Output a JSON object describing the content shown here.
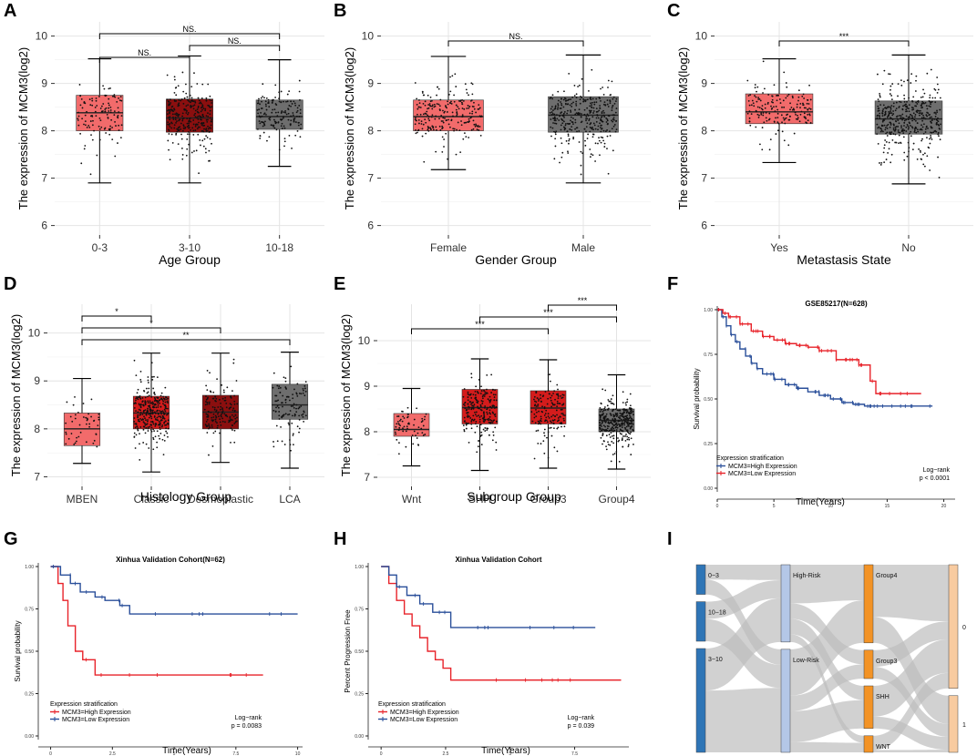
{
  "figure": {
    "panel_labels": [
      "A",
      "B",
      "C",
      "D",
      "E",
      "F",
      "G",
      "H",
      "I"
    ]
  },
  "colors": {
    "salmon": "#f26b6b",
    "darkred": "#8b0f0f",
    "gray": "#6e6e6e",
    "red": "#d41c1c",
    "grid": "#e4e4e4",
    "blue_line": "#2a4f9a",
    "red_line": "#e8232a",
    "sankey_blue": "#2e75b6",
    "sankey_light": "#b4c7e7",
    "sankey_orange": "#f39325",
    "sankey_peach": "#f8cba0",
    "sankey_flow": "#bdbdbd"
  },
  "chart_data": [
    {
      "panel": "A",
      "type": "box",
      "xlabel": "Age Group",
      "ylabel": "The expression of MCM3(log2)",
      "ylim": [
        5.8,
        10.3
      ],
      "yticks": [
        "6",
        "7",
        "8",
        "9",
        "10"
      ],
      "ytick_values": [
        6,
        7,
        8,
        9,
        10
      ],
      "categories": [
        "0-3",
        "3-10",
        "10-18"
      ],
      "boxes": [
        {
          "q1": 8.0,
          "median": 8.38,
          "q3": 8.75,
          "wlo": 6.9,
          "whi": 9.52,
          "color": "salmon",
          "n": 120
        },
        {
          "q1": 7.97,
          "median": 8.27,
          "q3": 8.67,
          "wlo": 6.9,
          "whi": 9.58,
          "color": "darkred",
          "n": 300
        },
        {
          "q1": 8.03,
          "median": 8.3,
          "q3": 8.65,
          "wlo": 7.25,
          "whi": 9.5,
          "color": "gray",
          "n": 160
        }
      ],
      "significance": [
        {
          "from": 0,
          "to": 1,
          "label": "NS."
        },
        {
          "from": 1,
          "to": 2,
          "label": "NS."
        },
        {
          "from": 0,
          "to": 2,
          "label": "NS."
        }
      ]
    },
    {
      "panel": "B",
      "type": "box",
      "xlabel": "Gender Group",
      "ylabel": "The expression of MCM3(log2)",
      "ylim": [
        5.8,
        10.3
      ],
      "yticks": [
        "6",
        "7",
        "8",
        "9",
        "10"
      ],
      "ytick_values": [
        6,
        7,
        8,
        9,
        10
      ],
      "categories": [
        "Female",
        "Male"
      ],
      "boxes": [
        {
          "q1": 8.0,
          "median": 8.3,
          "q3": 8.65,
          "wlo": 7.18,
          "whi": 9.57,
          "color": "salmon",
          "n": 230
        },
        {
          "q1": 7.97,
          "median": 8.33,
          "q3": 8.72,
          "wlo": 6.9,
          "whi": 9.6,
          "color": "gray",
          "n": 360
        }
      ],
      "significance": [
        {
          "from": 0,
          "to": 1,
          "label": "NS."
        }
      ]
    },
    {
      "panel": "C",
      "type": "box",
      "xlabel": "Metastasis State",
      "ylabel": "The expression of MCM3(log2)",
      "ylim": [
        5.8,
        10.3
      ],
      "yticks": [
        "6",
        "7",
        "8",
        "9",
        "10"
      ],
      "ytick_values": [
        6,
        7,
        8,
        9,
        10
      ],
      "categories": [
        "Yes",
        "No"
      ],
      "boxes": [
        {
          "q1": 8.15,
          "median": 8.4,
          "q3": 8.78,
          "wlo": 7.33,
          "whi": 9.52,
          "color": "salmon",
          "n": 170
        },
        {
          "q1": 7.93,
          "median": 8.25,
          "q3": 8.63,
          "wlo": 6.88,
          "whi": 9.6,
          "color": "gray",
          "n": 420
        }
      ],
      "significance": [
        {
          "from": 0,
          "to": 1,
          "label": "***"
        }
      ]
    },
    {
      "panel": "D",
      "type": "box",
      "xlabel": "Histology Group",
      "ylabel": "The expression of MCM3(log2)",
      "ylim": [
        6.8,
        10.6
      ],
      "yticks": [
        "7",
        "8",
        "9",
        "10"
      ],
      "ytick_values": [
        7,
        8,
        9,
        10
      ],
      "categories": [
        "MBEN",
        "Classic",
        "Desmoplastic",
        "LCA"
      ],
      "boxes": [
        {
          "q1": 7.65,
          "median": 8.0,
          "q3": 8.33,
          "wlo": 7.28,
          "whi": 9.05,
          "color": "salmon",
          "n": 45
        },
        {
          "q1": 8.0,
          "median": 8.33,
          "q3": 8.68,
          "wlo": 7.1,
          "whi": 9.58,
          "color": "red",
          "n": 330
        },
        {
          "q1": 8.0,
          "median": 8.35,
          "q3": 8.7,
          "wlo": 7.3,
          "whi": 9.58,
          "color": "darkred",
          "n": 160
        },
        {
          "q1": 8.2,
          "median": 8.5,
          "q3": 8.93,
          "wlo": 7.18,
          "whi": 9.6,
          "color": "gray",
          "n": 110
        }
      ],
      "significance": [
        {
          "from": 0,
          "to": 1,
          "label": "*"
        },
        {
          "from": 0,
          "to": 2,
          "label": "*"
        },
        {
          "from": 0,
          "to": 3,
          "label": "**"
        }
      ]
    },
    {
      "panel": "E",
      "type": "box",
      "xlabel": "Subgroup Group",
      "ylabel": "The expression of MCM3(log2)",
      "ylim": [
        6.8,
        10.8
      ],
      "yticks": [
        "7",
        "8",
        "9",
        "10"
      ],
      "ytick_values": [
        7,
        8,
        9,
        10
      ],
      "categories": [
        "Wnt",
        "SHH",
        "Group3",
        "Group4"
      ],
      "boxes": [
        {
          "q1": 7.9,
          "median": 8.05,
          "q3": 8.4,
          "wlo": 7.25,
          "whi": 8.95,
          "color": "salmon",
          "n": 60
        },
        {
          "q1": 8.17,
          "median": 8.53,
          "q3": 8.93,
          "wlo": 7.15,
          "whi": 9.6,
          "color": "red",
          "n": 220
        },
        {
          "q1": 8.17,
          "median": 8.52,
          "q3": 8.9,
          "wlo": 7.2,
          "whi": 9.58,
          "color": "red",
          "n": 150
        },
        {
          "q1": 8.0,
          "median": 8.25,
          "q3": 8.5,
          "wlo": 7.18,
          "whi": 9.25,
          "color": "gray",
          "n": 330
        }
      ],
      "significance": [
        {
          "from": 0,
          "to": 2,
          "label": "***"
        },
        {
          "from": 1,
          "to": 3,
          "label": "***"
        },
        {
          "from": 2,
          "to": 3,
          "label": "***"
        }
      ]
    },
    {
      "panel": "F",
      "type": "line",
      "subtype": "kaplan-meier",
      "title": "GSE85217(N=628)",
      "xlabel": "Time(Years)",
      "ylabel": "Survival probability",
      "xlim": [
        0,
        21
      ],
      "ylim": [
        0,
        1.0
      ],
      "xticks": [
        "0",
        "5",
        "10",
        "15",
        "20"
      ],
      "xtick_values": [
        0,
        5,
        10,
        15,
        20
      ],
      "yticks": [
        "0.00",
        "0.25",
        "0.50",
        "0.75",
        "1.00"
      ],
      "ytick_values": [
        0,
        0.25,
        0.5,
        0.75,
        1.0
      ],
      "legend_title": "Expression stratification",
      "stat_lines": [
        "Log−rank",
        "p < 0.0001"
      ],
      "series": [
        {
          "name": "MCM3=High Expression",
          "color": "blue_line",
          "x": [
            0,
            0.4,
            0.8,
            1.2,
            1.6,
            2.0,
            2.5,
            3.0,
            3.5,
            4.0,
            5.0,
            6.0,
            7.0,
            8.0,
            9.0,
            10.0,
            11.0,
            12.0,
            13.0,
            15.0,
            19.0
          ],
          "y": [
            1.0,
            0.96,
            0.91,
            0.86,
            0.82,
            0.78,
            0.74,
            0.7,
            0.67,
            0.64,
            0.61,
            0.58,
            0.56,
            0.54,
            0.52,
            0.5,
            0.48,
            0.47,
            0.46,
            0.46,
            0.46
          ]
        },
        {
          "name": "MCM3=Low Expression",
          "color": "red_line",
          "x": [
            0,
            0.5,
            1.0,
            2.0,
            3.0,
            4.0,
            5.0,
            6.0,
            7.0,
            8.0,
            9.0,
            10.5,
            12.5,
            13.5,
            14.0,
            18.0
          ],
          "y": [
            1.0,
            0.98,
            0.96,
            0.92,
            0.88,
            0.85,
            0.83,
            0.81,
            0.8,
            0.79,
            0.77,
            0.72,
            0.69,
            0.6,
            0.53,
            0.53
          ]
        }
      ]
    },
    {
      "panel": "G",
      "type": "line",
      "subtype": "kaplan-meier",
      "title": "Xinhua Validation Cohort(N=62)",
      "xlabel": "Time(Years)",
      "ylabel": "Survival probability",
      "xlim": [
        -0.5,
        10.2
      ],
      "ylim": [
        0,
        1.0
      ],
      "xticks": [
        "0",
        "2.5",
        "5",
        "7.5",
        "10"
      ],
      "xtick_values": [
        0,
        2.5,
        5,
        7.5,
        10
      ],
      "yticks": [
        "0.00",
        "0.25",
        "0.50",
        "0.75",
        "1.00"
      ],
      "ytick_values": [
        0,
        0.25,
        0.5,
        0.75,
        1.0
      ],
      "legend_title": "Expression stratification",
      "stat_lines": [
        "Log−rank",
        "p = 0.0083"
      ],
      "series": [
        {
          "name": "MCM3=High Expression",
          "color": "red_line",
          "x": [
            0,
            0.3,
            0.5,
            0.7,
            1.0,
            1.3,
            1.8,
            8.6
          ],
          "y": [
            1.0,
            0.9,
            0.8,
            0.65,
            0.5,
            0.45,
            0.36,
            0.36
          ]
        },
        {
          "name": "MCM3=Low Expression",
          "color": "blue_line",
          "x": [
            0,
            0.4,
            0.8,
            1.2,
            1.8,
            2.2,
            2.8,
            3.2,
            10.0
          ],
          "y": [
            1.0,
            0.95,
            0.9,
            0.85,
            0.82,
            0.8,
            0.77,
            0.72,
            0.72
          ]
        }
      ]
    },
    {
      "panel": "H",
      "type": "line",
      "subtype": "kaplan-meier",
      "title": "Xinhua Validation Cohort",
      "xlabel": "Time(Years)",
      "ylabel": "Percent Progression Free",
      "xlim": [
        -0.5,
        9.6
      ],
      "ylim": [
        0,
        1.0
      ],
      "xticks": [
        "0",
        "2.5",
        "5",
        "7.5"
      ],
      "xtick_values": [
        0,
        2.5,
        5,
        7.5
      ],
      "yticks": [
        "0.00",
        "0.25",
        "0.50",
        "0.75",
        "1.00"
      ],
      "ytick_values": [
        0,
        0.25,
        0.5,
        0.75,
        1.0
      ],
      "legend_title": "Expression stratification",
      "stat_lines": [
        "Log−rank",
        "p = 0.039"
      ],
      "series": [
        {
          "name": "MCM3=High Expression",
          "color": "red_line",
          "x": [
            0,
            0.3,
            0.6,
            0.9,
            1.2,
            1.5,
            1.8,
            2.1,
            2.4,
            2.7,
            9.3
          ],
          "y": [
            1.0,
            0.9,
            0.8,
            0.72,
            0.65,
            0.58,
            0.5,
            0.45,
            0.4,
            0.33,
            0.33
          ]
        },
        {
          "name": "MCM3=Low Expression",
          "color": "blue_line",
          "x": [
            0,
            0.3,
            0.6,
            1.0,
            1.5,
            2.0,
            2.7,
            8.3
          ],
          "y": [
            1.0,
            0.95,
            0.88,
            0.83,
            0.78,
            0.73,
            0.64,
            0.64
          ]
        }
      ]
    },
    {
      "panel": "I",
      "type": "sankey",
      "stages": [
        {
          "nodes": [
            {
              "label": "0−3",
              "value": 12
            },
            {
              "label": "10−18",
              "value": 16
            },
            {
              "label": "3−10",
              "value": 42
            }
          ],
          "color": "sankey_blue"
        },
        {
          "nodes": [
            {
              "label": "High-Risk",
              "value": 30
            },
            {
              "label": "Low-Risk",
              "value": 40
            }
          ],
          "color": "sankey_light"
        },
        {
          "nodes": [
            {
              "label": "Group4",
              "value": 33
            },
            {
              "label": "Group3",
              "value": 12
            },
            {
              "label": "SHH",
              "value": 18
            },
            {
              "label": "WNT",
              "value": 7
            }
          ],
          "color": "sankey_orange"
        },
        {
          "nodes": [
            {
              "label": "0",
              "value": 48
            },
            {
              "label": "1",
              "value": 22
            }
          ],
          "color": "sankey_peach"
        }
      ],
      "links": [
        [
          [
            0,
            0,
            6
          ],
          [
            0,
            1,
            6
          ],
          [
            1,
            0,
            7
          ],
          [
            1,
            1,
            9
          ],
          [
            2,
            0,
            17
          ],
          [
            2,
            1,
            25
          ]
        ],
        [
          [
            0,
            0,
            15
          ],
          [
            0,
            1,
            6
          ],
          [
            0,
            2,
            6
          ],
          [
            0,
            3,
            3
          ],
          [
            1,
            0,
            18
          ],
          [
            1,
            1,
            6
          ],
          [
            1,
            2,
            12
          ],
          [
            1,
            3,
            4
          ]
        ],
        [
          [
            0,
            0,
            22
          ],
          [
            0,
            1,
            11
          ],
          [
            1,
            0,
            7
          ],
          [
            1,
            1,
            5
          ],
          [
            2,
            0,
            13
          ],
          [
            2,
            1,
            5
          ],
          [
            3,
            0,
            6
          ],
          [
            3,
            1,
            1
          ]
        ]
      ]
    }
  ]
}
